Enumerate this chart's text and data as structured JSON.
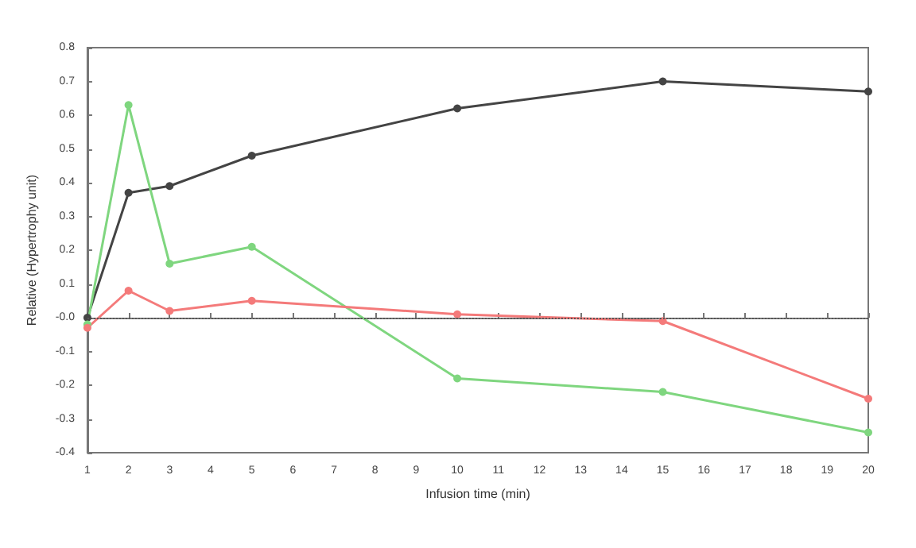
{
  "chart_data": {
    "type": "line",
    "xlabel": "Infusion time (min)",
    "ylabel": "Relative (Hypertrophy unit)",
    "x": [
      1,
      2,
      3,
      5,
      10,
      15,
      20
    ],
    "series": [
      {
        "color": "#444444",
        "values": [
          0.0,
          0.37,
          0.39,
          0.48,
          0.62,
          0.7,
          0.67
        ]
      },
      {
        "color": "#7fd67f",
        "values": [
          -0.02,
          0.63,
          0.16,
          0.21,
          -0.18,
          -0.22,
          -0.34
        ]
      },
      {
        "color": "#f47a7a",
        "values": [
          -0.03,
          0.08,
          0.02,
          0.05,
          0.01,
          -0.01,
          -0.24
        ]
      }
    ],
    "xlim": [
      1,
      20
    ],
    "xticks": [
      1,
      2,
      3,
      4,
      5,
      6,
      7,
      8,
      9,
      10,
      11,
      12,
      13,
      14,
      15,
      16,
      17,
      18,
      19,
      20
    ],
    "ylim": [
      -0.4,
      0.8
    ],
    "yticks": [
      {
        "value": -0.4,
        "label": "-0.4"
      },
      {
        "value": -0.3,
        "label": "-0.3"
      },
      {
        "value": -0.2,
        "label": "-0.2"
      },
      {
        "value": -0.1,
        "label": "-0.1"
      },
      {
        "value": 0,
        "label": "-0.0"
      },
      {
        "value": 0.1,
        "label": "0.1"
      },
      {
        "value": 0.2,
        "label": "0.2"
      },
      {
        "value": 0.3,
        "label": "0.3"
      },
      {
        "value": 0.4,
        "label": "0.4"
      },
      {
        "value": 0.5,
        "label": "0.5"
      },
      {
        "value": 0.6,
        "label": "0.6"
      },
      {
        "value": 0.7,
        "label": "0.7"
      },
      {
        "value": 0.8,
        "label": "0.8"
      }
    ],
    "ref_lines": [
      {
        "axis": "y",
        "value": 0,
        "color": "#555555",
        "line_style": "dotted"
      }
    ],
    "grid": false,
    "marker": "circle",
    "line_style": "solid"
  }
}
